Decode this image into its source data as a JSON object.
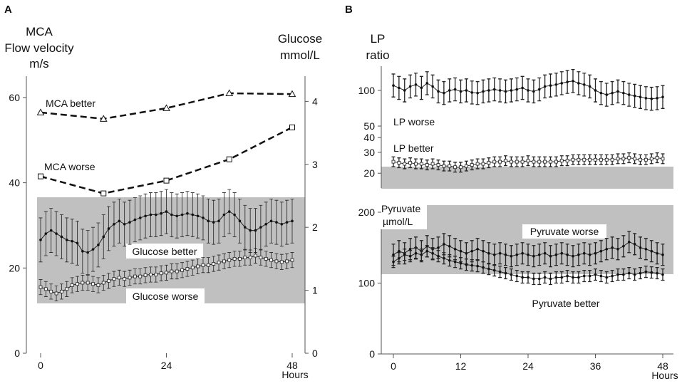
{
  "chart_data": [
    {
      "panel": "A",
      "type": "line",
      "title": "",
      "xlabel": "Hours",
      "ylabel": "MCA Flow velocity m/s",
      "ylabel_lines": [
        "MCA",
        "Flow velocity",
        "m/s"
      ],
      "y2label": "Glucose mmol/L",
      "y2label_lines": [
        "Glucose",
        "mmol/L"
      ],
      "xlim": [
        0,
        48
      ],
      "ylim": [
        0,
        65
      ],
      "y2lim": [
        0,
        4.4
      ],
      "xticks": [
        "0",
        "24",
        "48"
      ],
      "xtick_values": [
        0,
        24,
        48
      ],
      "yticks": [
        "0",
        "20",
        "40",
        "60"
      ],
      "ytick_values": [
        0,
        20,
        40,
        60
      ],
      "y2ticks": [
        "0",
        "1",
        "2",
        "3",
        "4"
      ],
      "y2tick_values": [
        0,
        1,
        2,
        3,
        4
      ],
      "normal_range_y2": [
        0.8,
        2.5
      ],
      "series": [
        {
          "name": "MCA better",
          "axis": "left",
          "marker": "triangle",
          "x": [
            0,
            12,
            24,
            36,
            48
          ],
          "values": [
            56.5,
            55,
            57.5,
            61,
            60.8
          ]
        },
        {
          "name": "MCA worse",
          "axis": "left",
          "marker": "square",
          "x": [
            0,
            12,
            24,
            36,
            48
          ],
          "values": [
            41.5,
            37.5,
            40.5,
            45.5,
            53
          ]
        },
        {
          "name": "Glucose better",
          "axis": "right",
          "marker": "dot",
          "x": [
            0,
            1,
            2,
            3,
            4,
            5,
            6,
            7,
            8,
            9,
            10,
            11,
            12,
            13,
            14,
            15,
            16,
            17,
            18,
            19,
            20,
            21,
            22,
            23,
            24,
            25,
            26,
            27,
            28,
            29,
            30,
            31,
            32,
            33,
            34,
            35,
            36,
            37,
            38,
            39,
            40,
            41,
            42,
            43,
            44,
            45,
            46,
            47,
            48
          ],
          "values": [
            1.8,
            1.9,
            1.95,
            1.9,
            1.85,
            1.8,
            1.78,
            1.75,
            1.62,
            1.6,
            1.65,
            1.72,
            1.85,
            1.98,
            2.05,
            2.1,
            2.05,
            2.08,
            2.12,
            2.15,
            2.18,
            2.2,
            2.2,
            2.22,
            2.25,
            2.2,
            2.18,
            2.2,
            2.22,
            2.2,
            2.18,
            2.15,
            2.1,
            2.08,
            2.1,
            2.2,
            2.25,
            2.2,
            2.1,
            2.0,
            1.95,
            1.95,
            2.0,
            2.05,
            2.1,
            2.08,
            2.05,
            2.08,
            2.1
          ],
          "errors": [
            0.35,
            0.35,
            0.35,
            0.35,
            0.35,
            0.35,
            0.35,
            0.35,
            0.35,
            0.35,
            0.35,
            0.35,
            0.35,
            0.35,
            0.35,
            0.35,
            0.35,
            0.35,
            0.35,
            0.35,
            0.35,
            0.35,
            0.35,
            0.35,
            0.35,
            0.35,
            0.35,
            0.35,
            0.35,
            0.35,
            0.35,
            0.35,
            0.35,
            0.35,
            0.35,
            0.35,
            0.35,
            0.35,
            0.35,
            0.35,
            0.35,
            0.35,
            0.35,
            0.35,
            0.35,
            0.35,
            0.35,
            0.35,
            0.35
          ]
        },
        {
          "name": "Glucose worse",
          "axis": "right",
          "marker": "open-square",
          "x": [
            0,
            1,
            2,
            3,
            4,
            5,
            6,
            7,
            8,
            9,
            10,
            11,
            12,
            13,
            14,
            15,
            16,
            17,
            18,
            19,
            20,
            21,
            22,
            23,
            24,
            25,
            26,
            27,
            28,
            29,
            30,
            31,
            32,
            33,
            34,
            35,
            36,
            37,
            38,
            39,
            40,
            41,
            42,
            43,
            44,
            45,
            46,
            47,
            48
          ],
          "values": [
            1.05,
            1.02,
            0.98,
            0.95,
            0.98,
            1.02,
            1.08,
            1.1,
            1.12,
            1.12,
            1.1,
            1.08,
            1.12,
            1.15,
            1.18,
            1.2,
            1.18,
            1.2,
            1.22,
            1.22,
            1.24,
            1.25,
            1.25,
            1.27,
            1.28,
            1.3,
            1.3,
            1.32,
            1.34,
            1.36,
            1.38,
            1.4,
            1.4,
            1.42,
            1.44,
            1.46,
            1.48,
            1.5,
            1.5,
            1.52,
            1.52,
            1.55,
            1.52,
            1.5,
            1.48,
            1.46,
            1.45,
            1.46,
            1.48
          ],
          "errors": [
            0.12,
            0.12,
            0.12,
            0.12,
            0.12,
            0.12,
            0.12,
            0.12,
            0.12,
            0.12,
            0.12,
            0.12,
            0.12,
            0.12,
            0.12,
            0.12,
            0.12,
            0.12,
            0.12,
            0.12,
            0.12,
            0.12,
            0.12,
            0.12,
            0.12,
            0.12,
            0.12,
            0.12,
            0.12,
            0.12,
            0.12,
            0.12,
            0.12,
            0.12,
            0.12,
            0.12,
            0.12,
            0.12,
            0.12,
            0.12,
            0.12,
            0.12,
            0.12,
            0.12,
            0.12,
            0.12,
            0.12,
            0.12,
            0.12
          ]
        }
      ]
    },
    {
      "panel": "B-top",
      "type": "line",
      "title": "",
      "xlabel": "",
      "ylabel": "LP ratio",
      "ylabel_lines": [
        "LP",
        "ratio"
      ],
      "yscale": "log",
      "ylim": [
        15,
        160
      ],
      "yticks": [
        "20",
        "30",
        "40",
        "50",
        "100"
      ],
      "ytick_values": [
        20,
        30,
        40,
        50,
        100
      ],
      "normal_range": [
        15,
        25
      ],
      "series": [
        {
          "name": "LP worse",
          "marker": "triangle",
          "x": [
            0,
            1,
            2,
            3,
            4,
            5,
            6,
            7,
            8,
            9,
            10,
            11,
            12,
            13,
            14,
            15,
            16,
            17,
            18,
            19,
            20,
            21,
            22,
            23,
            24,
            25,
            26,
            27,
            28,
            29,
            30,
            31,
            32,
            33,
            34,
            35,
            36,
            37,
            38,
            39,
            40,
            41,
            42,
            43,
            44,
            45,
            46,
            47,
            48
          ],
          "values": [
            110,
            105,
            100,
            108,
            112,
            105,
            115,
            108,
            98,
            95,
            100,
            102,
            98,
            100,
            96,
            95,
            98,
            100,
            102,
            100,
            98,
            100,
            102,
            105,
            100,
            98,
            102,
            108,
            110,
            112,
            115,
            118,
            120,
            115,
            112,
            108,
            100,
            95,
            92,
            95,
            98,
            95,
            92,
            90,
            88,
            86,
            85,
            86,
            88
          ],
          "err_factor": 1.25
        },
        {
          "name": "LP better",
          "marker": "open-square",
          "x": [
            0,
            1,
            2,
            3,
            4,
            5,
            6,
            7,
            8,
            9,
            10,
            11,
            12,
            13,
            14,
            15,
            16,
            17,
            18,
            19,
            20,
            21,
            22,
            23,
            24,
            25,
            26,
            27,
            28,
            29,
            30,
            31,
            32,
            33,
            34,
            35,
            36,
            37,
            38,
            39,
            40,
            41,
            42,
            43,
            44,
            45,
            46,
            47,
            48
          ],
          "values": [
            25,
            24.5,
            24,
            24.5,
            24,
            24,
            23.5,
            24,
            23.5,
            23,
            23,
            22.5,
            22.5,
            23,
            23.5,
            24,
            24,
            24.5,
            25,
            25,
            25.5,
            25,
            25,
            25,
            25.5,
            25,
            25,
            25,
            25,
            25,
            25.5,
            25.5,
            26,
            26,
            26,
            26,
            26,
            26,
            26,
            26,
            26.5,
            26.5,
            27,
            26.5,
            26,
            26,
            26.5,
            27,
            26.5
          ],
          "err_factor": 1.1
        }
      ]
    },
    {
      "panel": "B-bottom",
      "type": "line",
      "title": "",
      "xlabel": "Hours",
      "ylabel": "Pyruvate µmol/L",
      "ylabel_lines": [
        "Pyruvate",
        "µmol/L"
      ],
      "xlim": [
        0,
        48
      ],
      "ylim": [
        0,
        200
      ],
      "xticks": [
        "0",
        "12",
        "24",
        "36",
        "48"
      ],
      "xtick_values": [
        0,
        12,
        24,
        36,
        48
      ],
      "yticks": [
        "0",
        "100",
        "200"
      ],
      "ytick_values": [
        0,
        100,
        200
      ],
      "normal_range": [
        114,
        210
      ],
      "series": [
        {
          "name": "Pyruvate worse",
          "marker": "dot",
          "x": [
            0,
            1,
            2,
            3,
            4,
            5,
            6,
            7,
            8,
            9,
            10,
            11,
            12,
            13,
            14,
            15,
            16,
            17,
            18,
            19,
            20,
            21,
            22,
            23,
            24,
            25,
            26,
            27,
            28,
            29,
            30,
            31,
            32,
            33,
            34,
            35,
            36,
            37,
            38,
            39,
            40,
            41,
            42,
            43,
            44,
            45,
            46,
            47,
            48
          ],
          "values": [
            140,
            145,
            142,
            148,
            150,
            145,
            152,
            148,
            150,
            155,
            152,
            148,
            145,
            142,
            145,
            148,
            145,
            142,
            140,
            142,
            140,
            138,
            140,
            142,
            140,
            138,
            140,
            142,
            138,
            140,
            142,
            140,
            138,
            140,
            142,
            140,
            142,
            145,
            148,
            150,
            148,
            152,
            158,
            155,
            150,
            148,
            145,
            142,
            140
          ],
          "errors": [
            15,
            15,
            15,
            15,
            15,
            15,
            15,
            15,
            15,
            15,
            15,
            15,
            15,
            15,
            15,
            15,
            15,
            15,
            15,
            15,
            15,
            15,
            15,
            15,
            15,
            15,
            15,
            15,
            15,
            15,
            15,
            15,
            15,
            15,
            15,
            15,
            15,
            15,
            15,
            15,
            15,
            15,
            15,
            15,
            15,
            15,
            15,
            15,
            15
          ]
        },
        {
          "name": "Pyruvate better",
          "marker": "dot",
          "x": [
            0,
            1,
            2,
            3,
            4,
            5,
            6,
            7,
            8,
            9,
            10,
            11,
            12,
            13,
            14,
            15,
            16,
            17,
            18,
            19,
            20,
            21,
            22,
            23,
            24,
            25,
            26,
            27,
            28,
            29,
            30,
            31,
            32,
            33,
            34,
            35,
            36,
            37,
            38,
            39,
            40,
            41,
            42,
            43,
            44,
            45,
            46,
            47,
            48
          ],
          "values": [
            130,
            135,
            140,
            138,
            142,
            140,
            145,
            142,
            138,
            135,
            132,
            130,
            128,
            126,
            125,
            124,
            122,
            120,
            118,
            116,
            114,
            112,
            110,
            108,
            108,
            106,
            106,
            108,
            106,
            108,
            108,
            110,
            108,
            108,
            110,
            110,
            112,
            110,
            108,
            110,
            112,
            112,
            114,
            112,
            114,
            116,
            115,
            114,
            112
          ],
          "errors": [
            8,
            8,
            8,
            8,
            8,
            8,
            8,
            8,
            8,
            8,
            8,
            8,
            8,
            8,
            8,
            8,
            8,
            8,
            8,
            8,
            8,
            8,
            8,
            8,
            8,
            8,
            8,
            8,
            8,
            8,
            8,
            8,
            8,
            8,
            8,
            8,
            8,
            8,
            8,
            8,
            8,
            8,
            8,
            8,
            8,
            8,
            8,
            8,
            8
          ]
        }
      ]
    }
  ]
}
